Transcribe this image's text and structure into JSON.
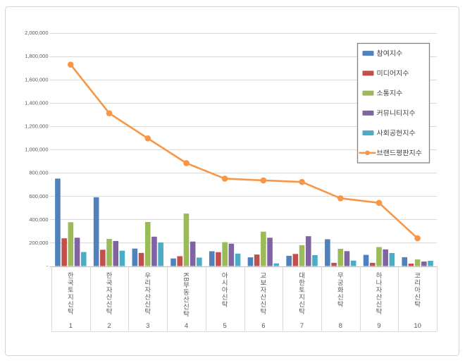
{
  "window": {
    "background_color": "#FFFFFF",
    "frame_border_color": "#D5D5D5"
  },
  "chart_data": {
    "type": "bar",
    "subtype": "grouped-bars-with-line-overlay",
    "title": "",
    "categories": [
      "한국토지신탁",
      "한국자산신탁",
      "우리자산신탁",
      "KB부동산신탁",
      "아시아신탁",
      "교보자산신탁",
      "대한토지신탁",
      "무궁화신탁",
      "하나자산신탁",
      "코리아신탁"
    ],
    "category_ranks": [
      "1",
      "2",
      "3",
      "4",
      "5",
      "6",
      "7",
      "8",
      "9",
      "10"
    ],
    "series": [
      {
        "name": "참여지수",
        "type": "bar",
        "color": "#4F81BD",
        "values": [
          750000,
          590000,
          150000,
          65000,
          127000,
          75000,
          88000,
          230000,
          96000,
          76000
        ]
      },
      {
        "name": "미디어지수",
        "type": "bar",
        "color": "#C0504D",
        "values": [
          238000,
          140000,
          113000,
          85000,
          119000,
          99000,
          104000,
          28000,
          28000,
          21000
        ]
      },
      {
        "name": "소통지수",
        "type": "bar",
        "color": "#9BBB59",
        "values": [
          376000,
          233000,
          378000,
          450000,
          205000,
          295000,
          179000,
          148000,
          163000,
          57000
        ]
      },
      {
        "name": "커뮤니티지수",
        "type": "bar",
        "color": "#8064A2",
        "values": [
          243000,
          215000,
          252000,
          210000,
          192000,
          243000,
          256000,
          128000,
          143000,
          39000
        ]
      },
      {
        "name": "사회공헌지수",
        "type": "bar",
        "color": "#4BACC6",
        "values": [
          120000,
          132000,
          202000,
          73000,
          107000,
          23000,
          94000,
          47000,
          112000,
          45000
        ]
      },
      {
        "name": "브랜드평판지수",
        "type": "line",
        "color": "#F79646",
        "values": [
          1727000,
          1310000,
          1095000,
          883000,
          750000,
          735000,
          721000,
          581000,
          542000,
          238000
        ]
      }
    ],
    "y_axis": {
      "min": 0,
      "max": 2000000,
      "tick_interval": 200000,
      "tick_labels": [
        "-",
        "200,000",
        "400,000",
        "600,000",
        "800,000",
        "1,000,000",
        "1,200,000",
        "1,400,000",
        "1,600,000",
        "1,800,000",
        "2,000,000"
      ],
      "label_color": "#595959"
    },
    "x_axis": {
      "label_color": "#595959"
    },
    "legend": {
      "position": "right",
      "border_color": "#848484",
      "background_color": "#FFFFFF",
      "text_color": "#404040",
      "items": [
        {
          "label": "참여지수",
          "marker": "bar-swatch",
          "color": "#4F81BD"
        },
        {
          "label": "미디어지수",
          "marker": "bar-swatch",
          "color": "#C0504D"
        },
        {
          "label": "소통지수",
          "marker": "bar-swatch",
          "color": "#9BBB59"
        },
        {
          "label": "커뮤니티지수",
          "marker": "bar-swatch",
          "color": "#8064A2"
        },
        {
          "label": "사회공헌지수",
          "marker": "bar-swatch",
          "color": "#4BACC6"
        },
        {
          "label": "브랜드평판지수",
          "marker": "line-with-circle",
          "color": "#F79646"
        }
      ]
    },
    "gridlines": {
      "show": true,
      "color": "#D9D9D9",
      "axis_line_color": "#BFBFBF"
    }
  }
}
